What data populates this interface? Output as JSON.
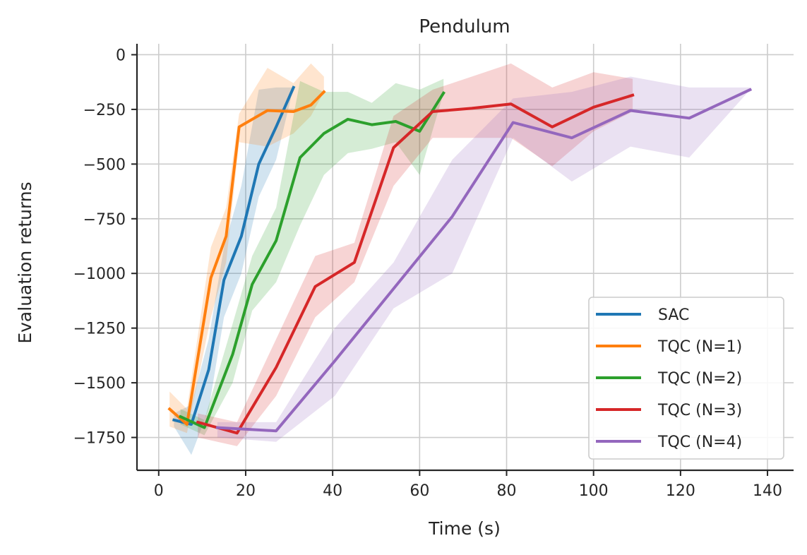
{
  "chart_data": {
    "type": "line",
    "title": "Pendulum",
    "xlabel": "Time (s)",
    "ylabel": "Evaluation returns",
    "xlim": [
      -5,
      146
    ],
    "ylim": [
      -1900,
      50
    ],
    "xticks": [
      0,
      20,
      40,
      60,
      80,
      100,
      120,
      140
    ],
    "yticks": [
      0,
      -250,
      -500,
      -750,
      -1000,
      -1250,
      -1500,
      -1750
    ],
    "ytick_labels": [
      "0",
      "−250",
      "−500",
      "−750",
      "−1000",
      "−1250",
      "−1500",
      "−1750"
    ],
    "grid": true,
    "legend_position": "lower-right",
    "series": [
      {
        "name": "SAC",
        "color": "#1f77b4",
        "x": [
          3.5,
          7.5,
          11.5,
          15,
          19,
          23,
          27,
          31
        ],
        "y": [
          -1670,
          -1690,
          -1440,
          -1030,
          -830,
          -500,
          -330,
          -150
        ],
        "lower": [
          -1700,
          -1830,
          -1620,
          -1200,
          -1000,
          -650,
          -480,
          -150
        ],
        "upper": [
          -1640,
          -1600,
          -1300,
          -880,
          -600,
          -160,
          -150,
          -150
        ]
      },
      {
        "name": "TQC (N=1)",
        "color": "#ff7f0e",
        "x": [
          2.5,
          6.5,
          12,
          15.5,
          18.5,
          25,
          31,
          35,
          38
        ],
        "y": [
          -1620,
          -1690,
          -1020,
          -830,
          -330,
          -255,
          -260,
          -230,
          -170
        ],
        "lower": [
          -1700,
          -1730,
          -1200,
          -950,
          -400,
          -420,
          -360,
          -280,
          -170
        ],
        "upper": [
          -1540,
          -1620,
          -880,
          -700,
          -270,
          -60,
          -130,
          -40,
          -100
        ]
      },
      {
        "name": "TQC (N=2)",
        "color": "#2ca02c",
        "x": [
          5,
          10.5,
          17,
          21.5,
          27,
          32.5,
          38,
          43.5,
          49,
          54.5,
          60,
          65.5
        ],
        "y": [
          -1655,
          -1705,
          -1370,
          -1050,
          -850,
          -470,
          -360,
          -295,
          -320,
          -305,
          -350,
          -175
        ],
        "lower": [
          -1690,
          -1740,
          -1500,
          -1170,
          -1040,
          -780,
          -550,
          -450,
          -430,
          -400,
          -550,
          -175
        ],
        "upper": [
          -1620,
          -1670,
          -1230,
          -920,
          -700,
          -120,
          -170,
          -170,
          -220,
          -130,
          -160,
          -110
        ]
      },
      {
        "name": "TQC (N=3)",
        "color": "#d62728",
        "x": [
          9,
          18,
          27,
          36,
          45,
          54,
          63,
          72,
          81,
          90.5,
          100,
          109
        ],
        "y": [
          -1680,
          -1730,
          -1430,
          -1060,
          -950,
          -425,
          -260,
          -245,
          -225,
          -330,
          -240,
          -185
        ],
        "lower": [
          -1750,
          -1790,
          -1560,
          -1200,
          -1040,
          -600,
          -380,
          -380,
          -380,
          -510,
          -350,
          -260
        ],
        "upper": [
          -1640,
          -1680,
          -1300,
          -920,
          -860,
          -280,
          -160,
          -100,
          -40,
          -150,
          -80,
          -110
        ]
      },
      {
        "name": "TQC (N=4)",
        "color": "#9467bd",
        "x": [
          13.5,
          27,
          40.5,
          54,
          67.5,
          81.5,
          95,
          108.5,
          122,
          136
        ],
        "y": [
          -1705,
          -1720,
          -1400,
          -1070,
          -740,
          -310,
          -380,
          -255,
          -290,
          -160
        ],
        "lower": [
          -1750,
          -1770,
          -1560,
          -1160,
          -1000,
          -380,
          -580,
          -420,
          -470,
          -160
        ],
        "upper": [
          -1680,
          -1680,
          -1250,
          -950,
          -480,
          -200,
          -170,
          -100,
          -150,
          -150
        ]
      }
    ]
  }
}
